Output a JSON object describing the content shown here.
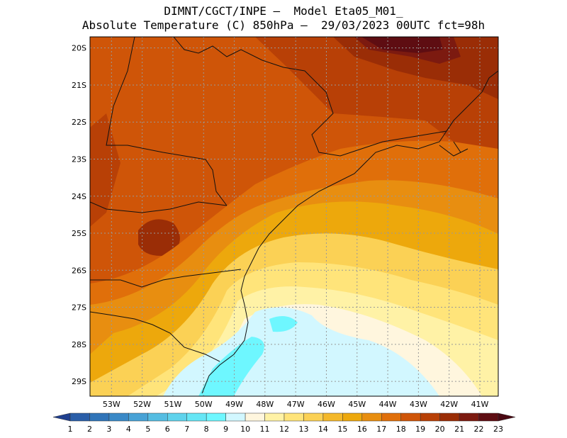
{
  "header": {
    "line1": "DIMNT/CGCT/INPE –  Model Eta05_M01_",
    "line2": "Absolute Temperature (C) 850hPa –  29/03/2023 00UTC fct=98h"
  },
  "map": {
    "lat_labels": [
      "20S",
      "21S",
      "22S",
      "23S",
      "24S",
      "25S",
      "26S",
      "27S",
      "28S",
      "29S"
    ],
    "lon_labels": [
      "53W",
      "52W",
      "51W",
      "50W",
      "49W",
      "48W",
      "47W",
      "46W",
      "45W",
      "44W",
      "43W",
      "42W",
      "41W"
    ],
    "lon_range": [
      -53.7,
      -40.4
    ],
    "lat_range": [
      -29.4,
      -19.7
    ],
    "grid": "dotted"
  },
  "colorbar": {
    "labels": [
      "1",
      "2",
      "3",
      "4",
      "5",
      "6",
      "7",
      "8",
      "9",
      "10",
      "11",
      "12",
      "13",
      "14",
      "15",
      "16",
      "17",
      "18",
      "19",
      "20",
      "21",
      "22",
      "23"
    ],
    "colors": [
      "#1f3f8f",
      "#2a5ea8",
      "#3074b8",
      "#3a89c7",
      "#48a2d6",
      "#55bde2",
      "#5fd3ec",
      "#66e6f5",
      "#6ef7ff",
      "#d2f7ff",
      "#fff6de",
      "#fff2a6",
      "#ffe47a",
      "#fbd155",
      "#f4b82a",
      "#eda80c",
      "#e88e10",
      "#e06f0a",
      "#cf5508",
      "#b84006",
      "#9a2d06",
      "#7c1a10",
      "#5e0d12",
      "#4a0812"
    ]
  }
}
